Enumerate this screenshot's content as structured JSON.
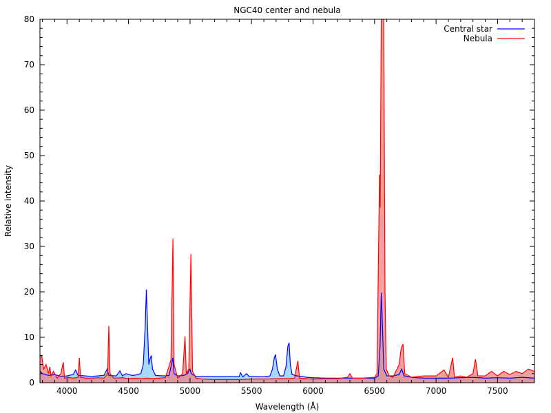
{
  "chart_data": {
    "type": "area",
    "title": "NGC40 center and nebula",
    "xlabel": "Wavelength (Å)",
    "ylabel": "Relative intensity",
    "xlim": [
      3780,
      7800
    ],
    "ylim": [
      0,
      80
    ],
    "x_ticks": [
      4000,
      4500,
      5000,
      5500,
      6000,
      6500,
      7000,
      7500
    ],
    "y_ticks": [
      0,
      10,
      20,
      30,
      40,
      50,
      60,
      70,
      80
    ],
    "x_tick_labels": [
      "4000",
      "4500",
      "5000",
      "5500",
      "6000",
      "6500",
      "7000",
      "7500"
    ],
    "y_tick_labels": [
      "0",
      "10",
      "20",
      "30",
      "40",
      "50",
      "60",
      "70",
      "80"
    ],
    "grid": false,
    "legend_position": "top-right",
    "series": [
      {
        "name": "Central star",
        "color": "#0000ff",
        "fill": "#87cefa",
        "points": [
          [
            3780,
            2.5
          ],
          [
            3800,
            2.0
          ],
          [
            3850,
            1.6
          ],
          [
            3900,
            1.8
          ],
          [
            3950,
            1.4
          ],
          [
            4000,
            1.5
          ],
          [
            4050,
            1.8
          ],
          [
            4070,
            2.8
          ],
          [
            4090,
            1.6
          ],
          [
            4150,
            1.5
          ],
          [
            4200,
            1.4
          ],
          [
            4250,
            1.5
          ],
          [
            4300,
            1.6
          ],
          [
            4326,
            3.0
          ],
          [
            4340,
            1.6
          ],
          [
            4400,
            1.5
          ],
          [
            4430,
            2.6
          ],
          [
            4450,
            1.5
          ],
          [
            4480,
            2.0
          ],
          [
            4500,
            1.8
          ],
          [
            4530,
            1.6
          ],
          [
            4560,
            1.7
          ],
          [
            4600,
            2.0
          ],
          [
            4620,
            4.0
          ],
          [
            4635,
            12.0
          ],
          [
            4645,
            20.5
          ],
          [
            4655,
            12.0
          ],
          [
            4665,
            4.0
          ],
          [
            4672,
            5.0
          ],
          [
            4685,
            6.0
          ],
          [
            4695,
            3.0
          ],
          [
            4720,
            1.6
          ],
          [
            4780,
            1.5
          ],
          [
            4830,
            1.6
          ],
          [
            4845,
            3.5
          ],
          [
            4860,
            5.5
          ],
          [
            4870,
            2.0
          ],
          [
            4900,
            1.5
          ],
          [
            4950,
            1.6
          ],
          [
            4980,
            2.0
          ],
          [
            5000,
            3.0
          ],
          [
            5010,
            2.0
          ],
          [
            5050,
            1.4
          ],
          [
            5100,
            1.4
          ],
          [
            5200,
            1.4
          ],
          [
            5300,
            1.4
          ],
          [
            5400,
            1.3
          ],
          [
            5410,
            2.2
          ],
          [
            5430,
            1.3
          ],
          [
            5460,
            2.0
          ],
          [
            5480,
            1.4
          ],
          [
            5550,
            1.3
          ],
          [
            5600,
            1.3
          ],
          [
            5650,
            1.5
          ],
          [
            5670,
            3.0
          ],
          [
            5685,
            5.5
          ],
          [
            5695,
            6.2
          ],
          [
            5710,
            3.0
          ],
          [
            5730,
            1.5
          ],
          [
            5760,
            1.5
          ],
          [
            5780,
            3.5
          ],
          [
            5795,
            8.0
          ],
          [
            5805,
            8.8
          ],
          [
            5815,
            4.0
          ],
          [
            5830,
            1.8
          ],
          [
            5870,
            1.5
          ],
          [
            5950,
            1.2
          ],
          [
            6000,
            1.1
          ],
          [
            6100,
            1.0
          ],
          [
            6200,
            1.0
          ],
          [
            6300,
            1.0
          ],
          [
            6400,
            1.0
          ],
          [
            6500,
            1.0
          ],
          [
            6530,
            1.5
          ],
          [
            6545,
            8.0
          ],
          [
            6555,
            19.8
          ],
          [
            6565,
            12.0
          ],
          [
            6575,
            3.0
          ],
          [
            6600,
            1.5
          ],
          [
            6650,
            1.5
          ],
          [
            6700,
            1.8
          ],
          [
            6720,
            3.0
          ],
          [
            6740,
            1.5
          ],
          [
            6800,
            1.2
          ],
          [
            6900,
            1.0
          ],
          [
            7000,
            1.0
          ],
          [
            7100,
            1.0
          ],
          [
            7200,
            1.1
          ],
          [
            7300,
            1.2
          ],
          [
            7400,
            1.0
          ],
          [
            7500,
            1.1
          ],
          [
            7600,
            1.0
          ],
          [
            7700,
            1.2
          ],
          [
            7800,
            1.0
          ]
        ]
      },
      {
        "name": "Nebula",
        "color": "#ff0000",
        "fill": "#f08080",
        "points": [
          [
            3780,
            6.0
          ],
          [
            3795,
            5.8
          ],
          [
            3810,
            3.0
          ],
          [
            3830,
            4.0
          ],
          [
            3850,
            2.0
          ],
          [
            3860,
            3.5
          ],
          [
            3870,
            1.5
          ],
          [
            3890,
            2.5
          ],
          [
            3920,
            1.0
          ],
          [
            3950,
            2.0
          ],
          [
            3970,
            4.5
          ],
          [
            3980,
            1.0
          ],
          [
            4000,
            1.2
          ],
          [
            4050,
            1.0
          ],
          [
            4090,
            1.2
          ],
          [
            4100,
            5.5
          ],
          [
            4110,
            1.2
          ],
          [
            4150,
            1.0
          ],
          [
            4200,
            1.0
          ],
          [
            4250,
            1.1
          ],
          [
            4300,
            1.0
          ],
          [
            4330,
            2.0
          ],
          [
            4340,
            12.5
          ],
          [
            4350,
            2.0
          ],
          [
            4380,
            1.0
          ],
          [
            4450,
            1.1
          ],
          [
            4500,
            0.9
          ],
          [
            4550,
            1.0
          ],
          [
            4600,
            0.9
          ],
          [
            4650,
            1.0
          ],
          [
            4700,
            0.9
          ],
          [
            4750,
            1.0
          ],
          [
            4800,
            1.1
          ],
          [
            4845,
            5.0
          ],
          [
            4861,
            31.7
          ],
          [
            4870,
            4.0
          ],
          [
            4900,
            1.0
          ],
          [
            4940,
            2.0
          ],
          [
            4959,
            10.2
          ],
          [
            4970,
            2.0
          ],
          [
            4990,
            3.0
          ],
          [
            5007,
            28.3
          ],
          [
            5020,
            2.5
          ],
          [
            5050,
            1.0
          ],
          [
            5100,
            0.8
          ],
          [
            5200,
            0.7
          ],
          [
            5300,
            0.7
          ],
          [
            5400,
            0.7
          ],
          [
            5500,
            0.8
          ],
          [
            5600,
            0.8
          ],
          [
            5700,
            0.9
          ],
          [
            5800,
            0.9
          ],
          [
            5850,
            1.0
          ],
          [
            5876,
            4.8
          ],
          [
            5890,
            1.0
          ],
          [
            5950,
            0.9
          ],
          [
            6000,
            0.8
          ],
          [
            6100,
            0.9
          ],
          [
            6200,
            0.9
          ],
          [
            6280,
            1.2
          ],
          [
            6300,
            2.0
          ],
          [
            6320,
            1.0
          ],
          [
            6400,
            1.0
          ],
          [
            6500,
            1.2
          ],
          [
            6520,
            2.0
          ],
          [
            6540,
            45.8
          ],
          [
            6546,
            38.5
          ],
          [
            6555,
            80.0
          ],
          [
            6565,
            80.0
          ],
          [
            6575,
            80.0
          ],
          [
            6585,
            20.0
          ],
          [
            6595,
            3.0
          ],
          [
            6620,
            1.5
          ],
          [
            6650,
            1.2
          ],
          [
            6700,
            4.0
          ],
          [
            6716,
            7.5
          ],
          [
            6731,
            8.5
          ],
          [
            6745,
            2.0
          ],
          [
            6800,
            1.2
          ],
          [
            6900,
            1.5
          ],
          [
            7000,
            1.5
          ],
          [
            7065,
            2.8
          ],
          [
            7100,
            1.2
          ],
          [
            7135,
            5.5
          ],
          [
            7150,
            1.2
          ],
          [
            7200,
            1.5
          ],
          [
            7250,
            1.2
          ],
          [
            7300,
            2.0
          ],
          [
            7320,
            5.2
          ],
          [
            7340,
            1.5
          ],
          [
            7400,
            1.5
          ],
          [
            7450,
            2.5
          ],
          [
            7500,
            1.5
          ],
          [
            7550,
            2.5
          ],
          [
            7600,
            1.8
          ],
          [
            7650,
            2.5
          ],
          [
            7700,
            2.0
          ],
          [
            7750,
            3.0
          ],
          [
            7800,
            2.5
          ]
        ]
      }
    ]
  }
}
